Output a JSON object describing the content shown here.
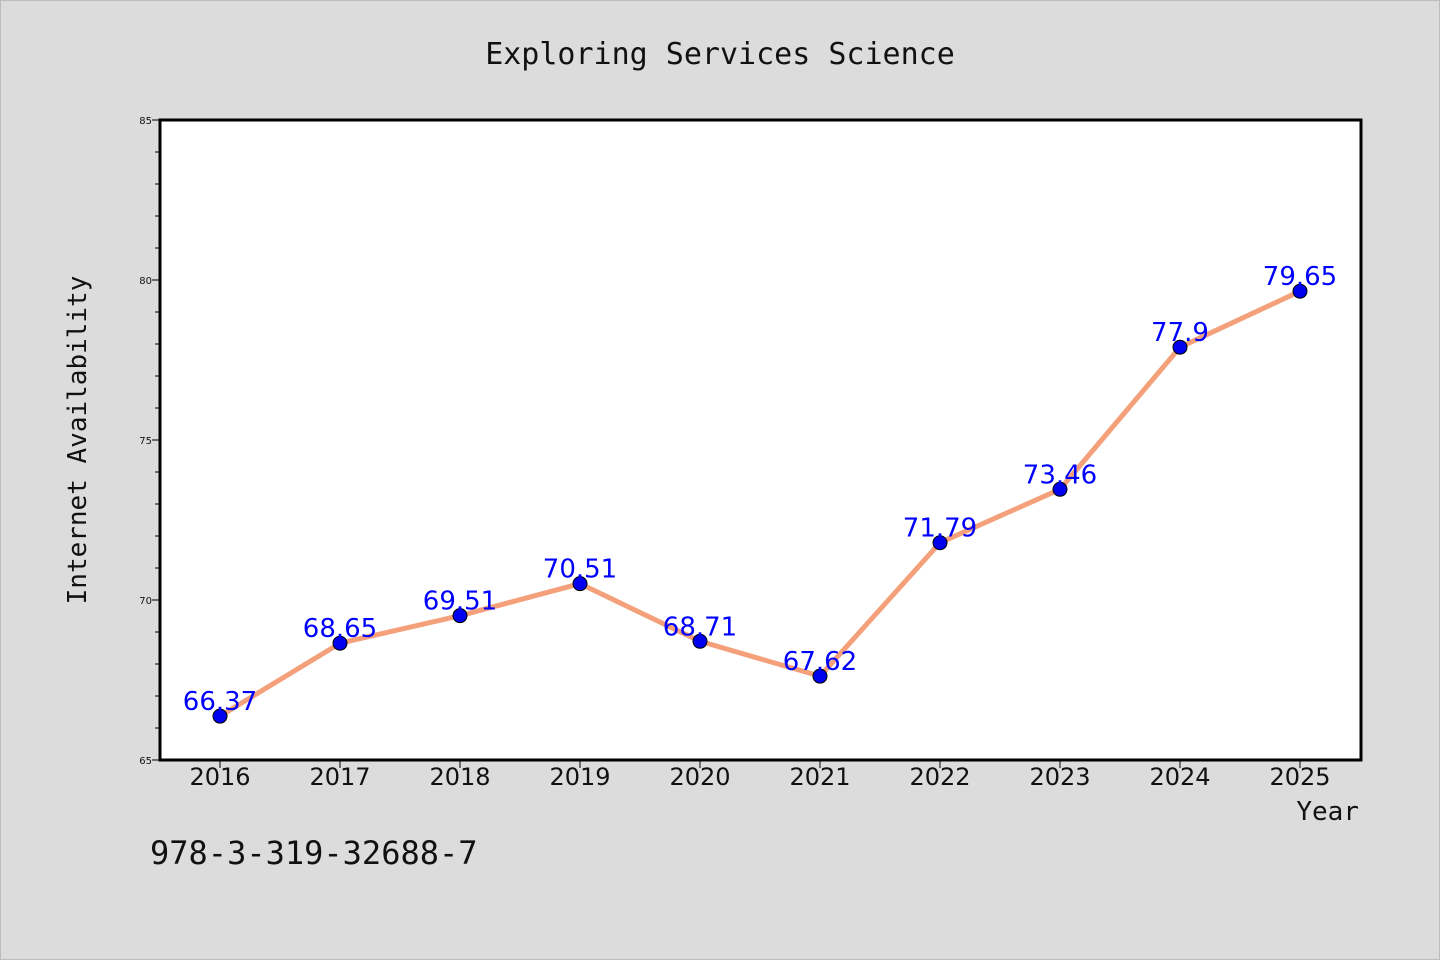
{
  "chart_data": {
    "type": "line",
    "title": "Exploring Services Science",
    "xlabel": "Year",
    "ylabel": "Internet Availability",
    "categories": [
      "2016",
      "2017",
      "2018",
      "2019",
      "2020",
      "2021",
      "2022",
      "2023",
      "2024",
      "2025"
    ],
    "series": [
      {
        "values": [
          66.37,
          68.65,
          69.51,
          70.51,
          68.71,
          67.62,
          71.79,
          73.46,
          77.9,
          79.65
        ]
      }
    ],
    "data_labels": [
      "66.37",
      "68.65",
      "69.51",
      "70.51",
      "68.71",
      "67.62",
      "71.79",
      "73.46",
      "77.9",
      "79.65"
    ],
    "ylim": [
      65,
      85
    ],
    "yticks": [
      65,
      70,
      75,
      80,
      85
    ],
    "grid": false,
    "legend": "none",
    "colors": {
      "line": "#f4a07a",
      "marker": "#0000ee",
      "label": "#0000ff",
      "plot_background": "#ffffff",
      "figure_background": "#dcdcdc"
    }
  },
  "footer": {
    "isbn": "978-3-319-32688-7"
  }
}
